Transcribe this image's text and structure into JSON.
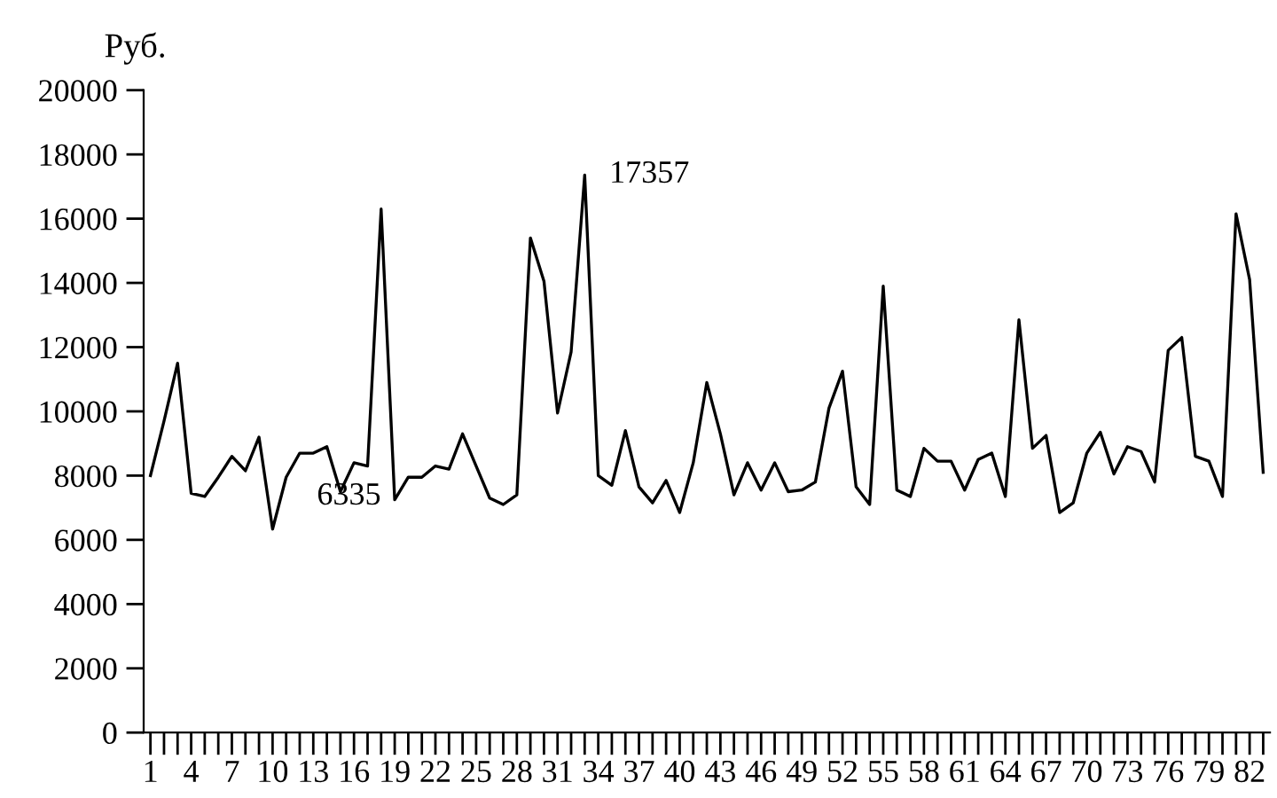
{
  "chart_data": {
    "type": "line",
    "ylabel": "Руб.",
    "categories": [
      "1",
      null,
      null,
      "4",
      null,
      null,
      "7",
      null,
      null,
      "10",
      null,
      null,
      "13",
      null,
      null,
      "16",
      null,
      null,
      "19",
      null,
      null,
      "22",
      null,
      null,
      "25",
      null,
      null,
      "28",
      null,
      null,
      "31",
      null,
      null,
      "34",
      null,
      null,
      "37",
      null,
      null,
      "40",
      null,
      null,
      "43",
      null,
      null,
      "46",
      null,
      null,
      "49",
      null,
      null,
      "52",
      null,
      null,
      "55",
      null,
      null,
      "58",
      null,
      null,
      "61",
      null,
      null,
      "64",
      null,
      null,
      "67",
      null,
      null,
      "70",
      null,
      null,
      "73",
      null,
      null,
      "76",
      null,
      null,
      "79",
      null,
      null,
      "82",
      null
    ],
    "series": [
      {
        "color": "#000000",
        "values": [
          8000,
          9700,
          11500,
          7450,
          7350,
          7950,
          8600,
          8150,
          9200,
          6335,
          7950,
          8700,
          8700,
          8900,
          7500,
          8400,
          8300,
          16300,
          7250,
          7950,
          7950,
          8300,
          8200,
          9300,
          8300,
          7300,
          7100,
          7400,
          15400,
          14050,
          9950,
          11850,
          17357,
          8000,
          7700,
          9400,
          7650,
          7150,
          7850,
          6850,
          8400,
          10900,
          9300,
          7400,
          8400,
          7550,
          8400,
          7500,
          7550,
          7800,
          10100,
          11250,
          7650,
          7100,
          13900,
          7550,
          7350,
          8850,
          8450,
          8450,
          7550,
          8500,
          8700,
          7350,
          12850,
          8850,
          9250,
          6850,
          7150,
          8700,
          9350,
          8050,
          8900,
          8750,
          7800,
          11900,
          12300,
          8600,
          8450,
          7350,
          16150,
          14100,
          8100
        ]
      }
    ],
    "ylim": [
      0,
      20000
    ],
    "yticks": [
      0,
      2000,
      4000,
      6000,
      8000,
      10000,
      12000,
      14000,
      16000,
      18000,
      20000
    ],
    "annotations": [
      "17357",
      "6335"
    ],
    "grid": false,
    "legend": false,
    "marker": "none",
    "line_style": "solid"
  }
}
